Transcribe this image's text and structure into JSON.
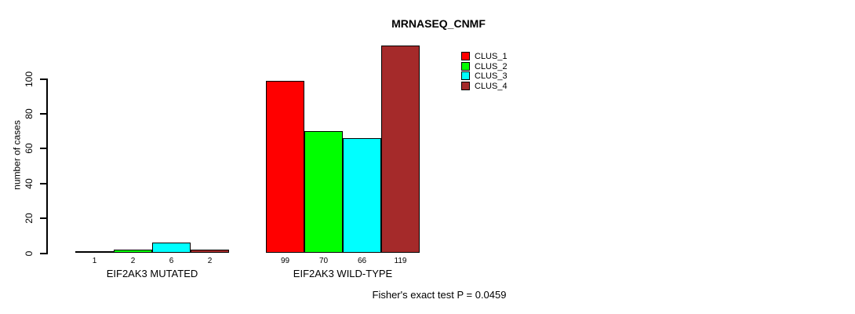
{
  "chart_data": {
    "type": "bar",
    "title": "MRNASEQ_CNMF",
    "ylabel": "number of cases",
    "xlabel": "",
    "ylim": [
      0,
      100
    ],
    "yticks": [
      0,
      20,
      40,
      60,
      80,
      100
    ],
    "grid": false,
    "legend_position": "top-right-inside",
    "bar_value_labels_shown": true,
    "categories": [
      "EIF2AK3 MUTATED",
      "EIF2AK3 WILD-TYPE"
    ],
    "series": [
      {
        "name": "CLUS_1",
        "color": "#ff0000",
        "values": [
          1,
          99
        ]
      },
      {
        "name": "CLUS_2",
        "color": "#00ff00",
        "values": [
          2,
          70
        ]
      },
      {
        "name": "CLUS_3",
        "color": "#00ffff",
        "values": [
          6,
          66
        ]
      },
      {
        "name": "CLUS_4",
        "color": "#a52a2a",
        "values": [
          2,
          119
        ]
      }
    ],
    "annotation": "Fisher's exact test P = 0.0459"
  }
}
